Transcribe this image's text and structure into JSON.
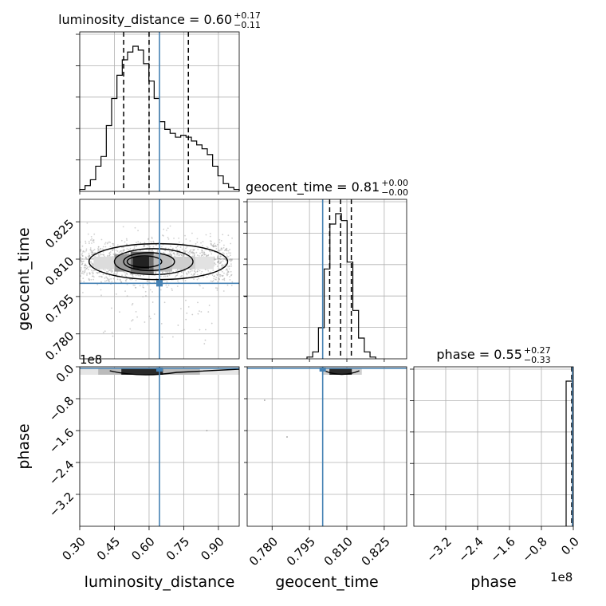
{
  "chart_data": {
    "type": "corner",
    "parameters": [
      {
        "name": "luminosity_distance",
        "axis_label": "luminosity_distance",
        "title_text": "luminosity_distance = 0.60",
        "title_plus": "+0.17",
        "title_minus": "−0.11",
        "median": 0.6,
        "q_lo": 0.49,
        "q_hi": 0.77,
        "truth": 0.645,
        "range": [
          0.3,
          0.99
        ],
        "ticks": [
          0.3,
          0.45,
          0.6,
          0.75,
          0.9
        ],
        "tick_labels": [
          "0.30",
          "0.45",
          "0.60",
          "0.75",
          "0.90"
        ],
        "hist_bins": [
          0.3,
          0.323,
          0.346,
          0.369,
          0.392,
          0.415,
          0.438,
          0.461,
          0.484,
          0.507,
          0.53,
          0.553,
          0.576,
          0.599,
          0.622,
          0.645,
          0.668,
          0.691,
          0.714,
          0.737,
          0.76,
          0.783,
          0.806,
          0.829,
          0.852,
          0.875,
          0.898,
          0.921,
          0.944,
          0.967,
          0.99
        ],
        "hist_counts": [
          0.5,
          1.5,
          3.0,
          6.5,
          9.0,
          17.0,
          24.0,
          30.0,
          34.0,
          36.0,
          37.5,
          36.5,
          33.0,
          28.5,
          24.0,
          18.0,
          16.0,
          15.0,
          14.0,
          14.5,
          14.0,
          13.0,
          12.0,
          11.0,
          9.5,
          6.5,
          4.0,
          2.0,
          1.0,
          0.5
        ]
      },
      {
        "name": "geocent_time",
        "axis_label": "geocent_time",
        "title_text": "geocent_time = 0.81",
        "title_plus": "+0.00",
        "title_minus": "−0.00",
        "median": 0.8075,
        "q_lo": 0.8031,
        "q_hi": 0.8118,
        "truth": 0.8003,
        "range": [
          0.77,
          0.834
        ],
        "ticks": [
          0.78,
          0.795,
          0.81,
          0.825
        ],
        "tick_labels": [
          "0.780",
          "0.795",
          "0.810",
          "0.825"
        ],
        "hist_bins": [
          0.794,
          0.7963,
          0.7986,
          0.8009,
          0.8032,
          0.8055,
          0.8078,
          0.8101,
          0.8124,
          0.8147,
          0.817,
          0.8193,
          0.8216
        ],
        "hist_counts": [
          0.5,
          2.0,
          9.0,
          26.0,
          39.0,
          42.0,
          40.0,
          28.0,
          14.0,
          6.0,
          2.0,
          0.5
        ]
      },
      {
        "name": "phase",
        "axis_label": "phase",
        "title_text": "phase = 0.55",
        "title_plus": "+0.27",
        "title_minus": "−0.33",
        "median": 0.55,
        "q_lo": 0.22,
        "q_hi": 0.82,
        "truth": 0.55,
        "range": [
          -400000000,
          0
        ],
        "ticks": [
          -320000000,
          -240000000,
          -160000000,
          -80000000,
          0
        ],
        "tick_labels": [
          "−3.2",
          "−2.4",
          "−1.6",
          "−0.8",
          "0.0"
        ],
        "offset_text": "1e8"
      }
    ],
    "grid": true,
    "truth_color": "#4682b4",
    "y_offset_text": "1e8"
  }
}
